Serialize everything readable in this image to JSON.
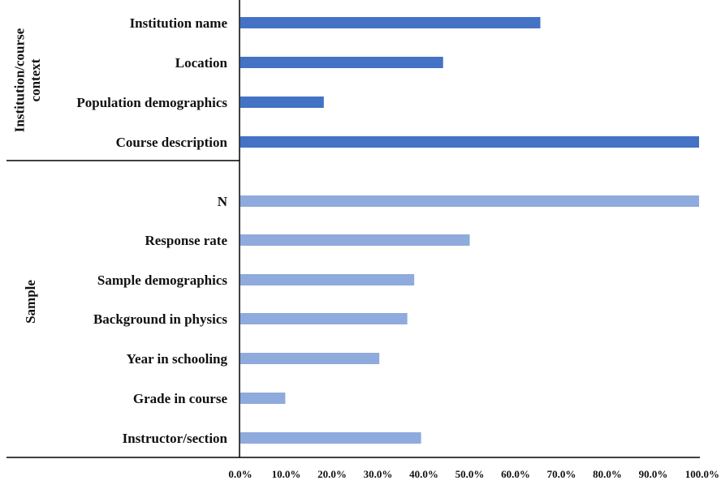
{
  "chart_data": {
    "type": "bar",
    "orientation": "horizontal",
    "xlim": [
      0,
      100
    ],
    "x_ticks": [
      "0.0%",
      "10.0%",
      "20.0%",
      "30.0%",
      "40.0%",
      "50.0%",
      "60.0%",
      "70.0%",
      "80.0%",
      "90.0%",
      "100.0%"
    ],
    "grid": false,
    "groups": [
      {
        "name": "Institution/course context",
        "color": "#4472c4",
        "categories": [
          "Institution name",
          "Location",
          "Population demographics",
          "Course description"
        ],
        "values": [
          65.4,
          44.2,
          18.2,
          100.0
        ]
      },
      {
        "name": "Sample",
        "color": "#8faadc",
        "categories": [
          "N",
          "Response rate",
          "Sample demographics",
          "Background in physics",
          "Year in schooling",
          "Grade in course",
          "Instructor/section"
        ],
        "values": [
          100.0,
          50.0,
          37.9,
          36.4,
          30.3,
          9.8,
          39.4
        ]
      }
    ]
  }
}
